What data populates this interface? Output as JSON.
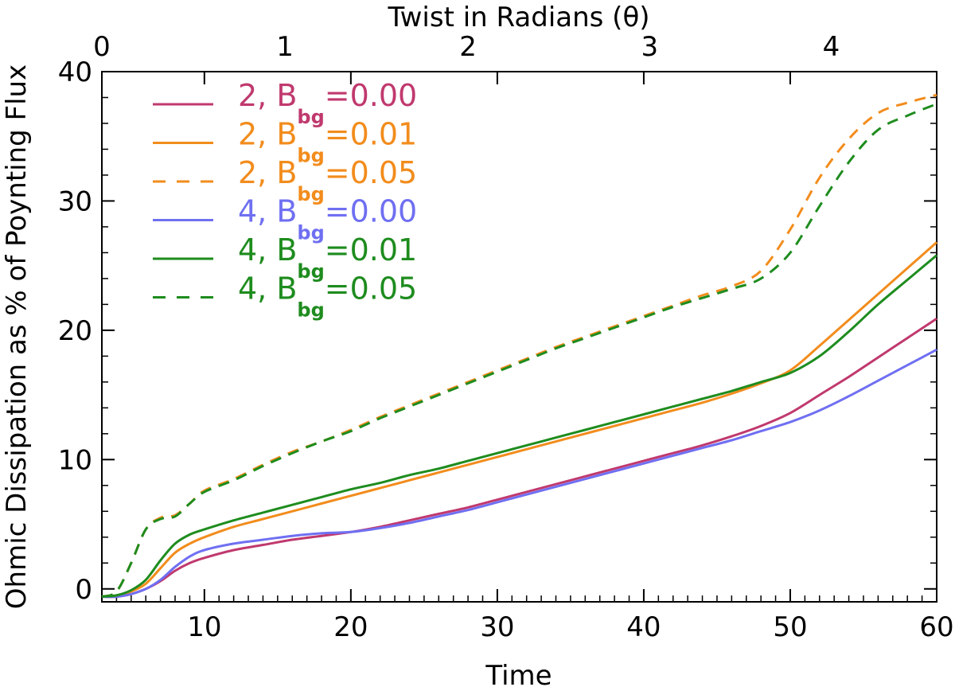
{
  "chart_data": {
    "type": "line",
    "xlabel": "Time",
    "ylabel": "Ohmic Dissipation as % of Poynting Flux",
    "top_xlabel": "Twist in Radians (θ)",
    "xlim": [
      3,
      60
    ],
    "ylim": [
      -1,
      40
    ],
    "x_ticks": [
      "10",
      "20",
      "30",
      "40",
      "50",
      "60"
    ],
    "y_ticks": [
      "0",
      "10",
      "20",
      "30",
      "40"
    ],
    "top_ticks": [
      "0",
      "1",
      "2",
      "3",
      "4"
    ],
    "top_tick_positions": [
      3,
      15.5,
      28,
      40.4,
      52.8
    ],
    "grid": false,
    "legend_position": "top-left",
    "x": [
      3,
      4,
      5,
      6,
      7,
      8,
      9,
      10,
      12,
      14,
      16,
      18,
      20,
      22,
      24,
      26,
      28,
      30,
      32,
      34,
      36,
      38,
      40,
      42,
      44,
      46,
      48,
      50,
      52,
      54,
      56,
      58,
      60
    ],
    "series": [
      {
        "name": "2, Bbg=0.00",
        "label_main": "2,  B",
        "label_sub": "bg",
        "label_value": "=0.00",
        "color": "#c0396e",
        "dash": "solid",
        "values": [
          -0.6,
          -0.6,
          -0.4,
          0.0,
          0.6,
          1.4,
          2.0,
          2.4,
          3.0,
          3.4,
          3.8,
          4.1,
          4.4,
          4.8,
          5.3,
          5.8,
          6.3,
          6.9,
          7.5,
          8.1,
          8.7,
          9.3,
          9.9,
          10.5,
          11.1,
          11.8,
          12.6,
          13.6,
          15.0,
          16.4,
          17.9,
          19.4,
          20.9
        ]
      },
      {
        "name": "2, Bbg=0.01",
        "label_main": "2,  B",
        "label_sub": "bg",
        "label_value": "=0.01",
        "color": "#f28c1c",
        "dash": "solid",
        "values": [
          -0.6,
          -0.5,
          -0.2,
          0.4,
          1.6,
          2.8,
          3.5,
          4.0,
          4.8,
          5.4,
          6.0,
          6.6,
          7.2,
          7.8,
          8.4,
          9.0,
          9.6,
          10.2,
          10.8,
          11.4,
          12.0,
          12.6,
          13.2,
          13.8,
          14.4,
          15.1,
          15.9,
          16.9,
          18.8,
          20.8,
          22.8,
          24.8,
          26.8
        ]
      },
      {
        "name": "2, Bbg=0.05",
        "label_main": "2,  B",
        "label_sub": "bg",
        "label_value": "=0.05",
        "color": "#f28c1c",
        "dash": "dashed",
        "values": [
          -0.6,
          -0.2,
          2.0,
          4.6,
          5.5,
          5.7,
          6.6,
          7.6,
          8.5,
          9.6,
          10.6,
          11.4,
          12.3,
          13.3,
          14.2,
          15.1,
          16.0,
          16.9,
          17.8,
          18.7,
          19.5,
          20.3,
          21.1,
          21.9,
          22.7,
          23.4,
          24.6,
          27.8,
          31.8,
          34.8,
          36.8,
          37.6,
          38.2
        ]
      },
      {
        "name": "4, Bbg=0.00",
        "label_main": "4,  B",
        "label_sub": "bg",
        "label_value": "=0.00",
        "color": "#6f6ff2",
        "dash": "solid",
        "values": [
          -0.6,
          -0.6,
          -0.4,
          0.0,
          0.7,
          1.7,
          2.5,
          3.0,
          3.5,
          3.8,
          4.1,
          4.3,
          4.4,
          4.7,
          5.1,
          5.6,
          6.1,
          6.7,
          7.3,
          7.9,
          8.5,
          9.1,
          9.7,
          10.3,
          10.9,
          11.5,
          12.2,
          12.9,
          13.8,
          14.9,
          16.1,
          17.3,
          18.5
        ]
      },
      {
        "name": "4, Bbg=0.01",
        "label_main": "4,  B",
        "label_sub": "bg",
        "label_value": "=0.01",
        "color": "#1e8c1e",
        "dash": "solid",
        "values": [
          -0.6,
          -0.5,
          -0.1,
          0.7,
          2.2,
          3.5,
          4.2,
          4.6,
          5.3,
          5.9,
          6.5,
          7.1,
          7.7,
          8.2,
          8.8,
          9.3,
          9.9,
          10.5,
          11.1,
          11.7,
          12.3,
          12.9,
          13.5,
          14.1,
          14.7,
          15.3,
          16.0,
          16.7,
          18.0,
          19.9,
          22.0,
          23.9,
          25.8
        ]
      },
      {
        "name": "4, Bbg=0.05",
        "label_main": "4,  B",
        "label_sub": "bg",
        "label_value": "=0.05",
        "color": "#1e8c1e",
        "dash": "dashed",
        "values": [
          -0.6,
          -0.2,
          2.0,
          4.6,
          5.4,
          5.6,
          6.6,
          7.5,
          8.4,
          9.5,
          10.5,
          11.4,
          12.2,
          13.2,
          14.1,
          15.0,
          15.9,
          16.8,
          17.7,
          18.6,
          19.4,
          20.2,
          21.0,
          21.8,
          22.5,
          23.2,
          24.0,
          26.0,
          29.6,
          33.0,
          35.5,
          36.6,
          37.5
        ]
      }
    ]
  }
}
